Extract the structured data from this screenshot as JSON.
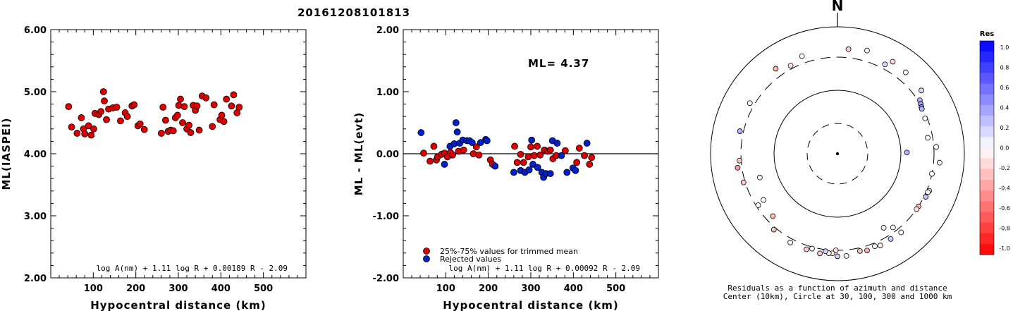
{
  "title": "20161208101813",
  "panel1": {
    "ylabel": "ML(IASPEI)",
    "xlabel": "Hypocentral distance (km)",
    "formula": "log A(nm) + 1.11 log R + 0.00189 R - 2.09",
    "yticks": [
      "2.00",
      "3.00",
      "4.00",
      "5.00",
      "6.00"
    ],
    "xticks": [
      "100",
      "200",
      "300",
      "400",
      "500"
    ]
  },
  "panel2": {
    "ylabel": "ML - ML(evt)",
    "xlabel": "Hypocentral distance (km)",
    "ml_text": "ML= 4.37",
    "formula": "log A(nm) + 1.11 log R + 0.00092 R - 2.09",
    "legend_trimmed": "25%-75% values for trimmed mean",
    "legend_rejected": "Rejected values",
    "yticks": [
      "-2.00",
      "-1.00",
      "0.00",
      "1.00",
      "2.00"
    ],
    "xticks": [
      "100",
      "200",
      "300",
      "400",
      "500"
    ]
  },
  "panel3": {
    "north": "N",
    "caption1": "Residuals as a function of azimuth and distance",
    "caption2": "Center (10km), Circle at 30, 100, 300 and 1000 km",
    "colorbar_title": "Res",
    "colorbar_ticks": [
      "1.0",
      "0.8",
      "0.6",
      "0.4",
      "0.2",
      "0.0",
      "-0.2",
      "-0.4",
      "-0.6",
      "-0.8",
      "-1.0"
    ]
  },
  "colors": {
    "trimmed": "#dd0000",
    "rejected": "#0020cc",
    "positive": "#0000ff",
    "negative": "#ff0000"
  },
  "chart_data": [
    {
      "type": "scatter",
      "xlabel": "Hypocentral distance (km)",
      "ylabel": "ML(IASPEI)",
      "xlim": [
        0,
        600
      ],
      "ylim": [
        2.0,
        6.0
      ],
      "points": [
        [
          42,
          4.76
        ],
        [
          49,
          4.43
        ],
        [
          62,
          4.33
        ],
        [
          72,
          4.58
        ],
        [
          77,
          4.4
        ],
        [
          80,
          4.32
        ],
        [
          89,
          4.45
        ],
        [
          95,
          4.3
        ],
        [
          101,
          4.4
        ],
        [
          104,
          4.65
        ],
        [
          113,
          4.63
        ],
        [
          118,
          4.68
        ],
        [
          124,
          5.0
        ],
        [
          126,
          4.85
        ],
        [
          131,
          4.55
        ],
        [
          136,
          4.72
        ],
        [
          146,
          4.74
        ],
        [
          155,
          4.75
        ],
        [
          164,
          4.53
        ],
        [
          175,
          4.66
        ],
        [
          180,
          4.6
        ],
        [
          191,
          4.77
        ],
        [
          196,
          4.79
        ],
        [
          205,
          4.45
        ],
        [
          210,
          4.48
        ],
        [
          220,
          4.39
        ],
        [
          260,
          4.33
        ],
        [
          264,
          4.75
        ],
        [
          270,
          4.54
        ],
        [
          276,
          4.36
        ],
        [
          282,
          4.38
        ],
        [
          288,
          4.37
        ],
        [
          293,
          4.58
        ],
        [
          298,
          4.62
        ],
        [
          301,
          4.78
        ],
        [
          305,
          4.88
        ],
        [
          310,
          4.5
        ],
        [
          314,
          4.76
        ],
        [
          320,
          4.4
        ],
        [
          325,
          4.46
        ],
        [
          329,
          4.34
        ],
        [
          335,
          4.78
        ],
        [
          340,
          4.7
        ],
        [
          344,
          4.77
        ],
        [
          349,
          4.38
        ],
        [
          356,
          4.93
        ],
        [
          365,
          4.9
        ],
        [
          380,
          4.44
        ],
        [
          384,
          4.79
        ],
        [
          398,
          4.55
        ],
        [
          402,
          4.62
        ],
        [
          407,
          4.52
        ],
        [
          413,
          4.88
        ],
        [
          425,
          4.77
        ],
        [
          430,
          4.95
        ],
        [
          438,
          4.66
        ],
        [
          443,
          4.75
        ]
      ]
    },
    {
      "type": "scatter",
      "xlabel": "Hypocentral distance (km)",
      "ylabel": "ML - ML(evt)",
      "xlim": [
        0,
        600
      ],
      "ylim": [
        -2.0,
        2.0
      ],
      "series": [
        {
          "name": "25%-75% values for trimmed mean",
          "points": [
            [
              48,
              0.01
            ],
            [
              63,
              -0.12
            ],
            [
              72,
              0.12
            ],
            [
              78,
              -0.1
            ],
            [
              81,
              -0.05
            ],
            [
              90,
              -0.01
            ],
            [
              97,
              0.01
            ],
            [
              104,
              -0.05
            ],
            [
              111,
              0.02
            ],
            [
              116,
              -0.02
            ],
            [
              130,
              0.04
            ],
            [
              142,
              0.06
            ],
            [
              165,
              0.0
            ],
            [
              172,
              0.11
            ],
            [
              178,
              -0.02
            ],
            [
              205,
              -0.1
            ],
            [
              210,
              -0.17
            ],
            [
              262,
              0.12
            ],
            [
              268,
              -0.14
            ],
            [
              276,
              -0.01
            ],
            [
              283,
              -0.14
            ],
            [
              294,
              -0.05
            ],
            [
              300,
              0.11
            ],
            [
              308,
              -0.03
            ],
            [
              315,
              0.12
            ],
            [
              322,
              -0.02
            ],
            [
              332,
              0.06
            ],
            [
              340,
              0.04
            ],
            [
              346,
              0.06
            ],
            [
              352,
              -0.08
            ],
            [
              360,
              -0.03
            ],
            [
              381,
              0.05
            ],
            [
              408,
              -0.14
            ],
            [
              414,
              0.09
            ],
            [
              426,
              -0.03
            ],
            [
              438,
              -0.17
            ],
            [
              443,
              -0.06
            ]
          ]
        },
        {
          "name": "Rejected values",
          "points": [
            [
              42,
              0.34
            ],
            [
              97,
              -0.17
            ],
            [
              110,
              0.12
            ],
            [
              120,
              0.16
            ],
            [
              124,
              0.5
            ],
            [
              127,
              0.35
            ],
            [
              133,
              0.17
            ],
            [
              140,
              0.22
            ],
            [
              150,
              0.21
            ],
            [
              156,
              0.21
            ],
            [
              162,
              0.18
            ],
            [
              182,
              0.18
            ],
            [
              194,
              0.23
            ],
            [
              197,
              0.21
            ],
            [
              216,
              -0.2
            ],
            [
              260,
              -0.3
            ],
            [
              276,
              -0.27
            ],
            [
              286,
              -0.3
            ],
            [
              296,
              -0.26
            ],
            [
              302,
              0.22
            ],
            [
              305,
              -0.17
            ],
            [
              316,
              -0.22
            ],
            [
              326,
              -0.3
            ],
            [
              330,
              -0.38
            ],
            [
              336,
              -0.32
            ],
            [
              346,
              -0.32
            ],
            [
              351,
              0.21
            ],
            [
              362,
              0.17
            ],
            [
              372,
              -0.03
            ],
            [
              385,
              -0.3
            ],
            [
              399,
              -0.23
            ],
            [
              405,
              -0.27
            ],
            [
              432,
              0.17
            ]
          ]
        }
      ]
    },
    {
      "type": "scatter",
      "polar": true,
      "xlabel": "",
      "ylabel": "",
      "rings_km": [
        30,
        100,
        300,
        1000
      ],
      "colorbar": {
        "title": "Res",
        "range": [
          -1.0,
          1.0
        ]
      },
      "points": [
        [
          6,
          420,
          -0.2
        ],
        [
          16,
          460,
          0.0
        ],
        [
          31,
          460,
          -0.15
        ],
        [
          28,
          360,
          0.15
        ],
        [
          40,
          440,
          0.0
        ],
        [
          53,
          420,
          0.15
        ],
        [
          57,
          320,
          0.3
        ],
        [
          59,
          305,
          0.4
        ],
        [
          61,
          295,
          0.45
        ],
        [
          62,
          290,
          0.3
        ],
        [
          68,
          280,
          0.0
        ],
        [
          80,
          255,
          0.0
        ],
        [
          86,
          330,
          0.0
        ],
        [
          89,
          122,
          0.3
        ],
        [
          95,
          380,
          0.0
        ],
        [
          102,
          300,
          0.0
        ],
        [
          112,
          330,
          -0.1
        ],
        [
          113,
          320,
          0.0
        ],
        [
          116,
          320,
          0.25
        ],
        [
          123,
          300,
          -0.3
        ],
        [
          125,
          300,
          -0.1
        ],
        [
          141,
          360,
          0.0
        ],
        [
          148,
          350,
          0.2
        ],
        [
          143,
          260,
          0.0
        ],
        [
          148,
          220,
          0.0
        ],
        [
          155,
          360,
          -0.1
        ],
        [
          158,
          340,
          0.0
        ],
        [
          163,
          360,
          -0.3
        ],
        [
          167,
          340,
          -0.25
        ],
        [
          175,
          380,
          0.0
        ],
        [
          180,
          380,
          0.2
        ],
        [
          181,
          300,
          -0.1
        ],
        [
          183,
          340,
          -0.1
        ],
        [
          185,
          340,
          0.0
        ],
        [
          187,
          320,
          0.2
        ],
        [
          190,
          360,
          -0.2
        ],
        [
          195,
          320,
          0.0
        ],
        [
          198,
          350,
          -0.2
        ],
        [
          208,
          350,
          0.0
        ],
        [
          220,
          330,
          -0.25
        ],
        [
          226,
          240,
          -0.3
        ],
        [
          237,
          280,
          0.0
        ],
        [
          238,
          220,
          0.0
        ],
        [
          253,
          320,
          -0.2
        ],
        [
          253,
          180,
          0.0
        ],
        [
          262,
          355,
          -0.4
        ],
        [
          266,
          320,
          -0.2
        ],
        [
          283,
          345,
          0.3
        ],
        [
          300,
          360,
          0.0
        ],
        [
          324,
          420,
          -0.3
        ],
        [
          332,
          340,
          -0.1
        ],
        [
          340,
          400,
          0.0
        ]
      ]
    }
  ]
}
